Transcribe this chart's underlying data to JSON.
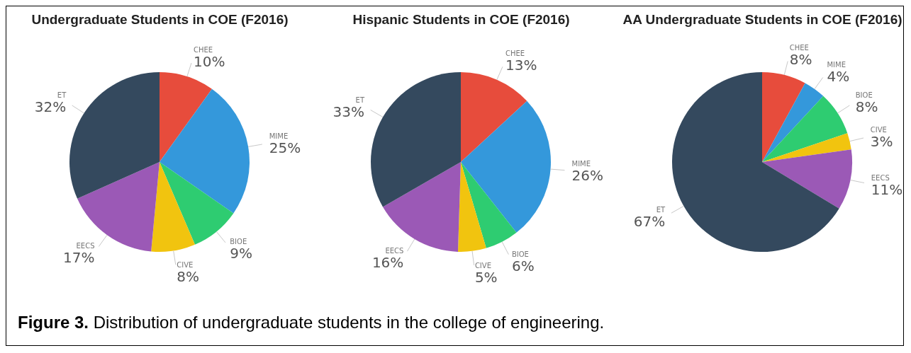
{
  "chart_data": [
    {
      "type": "pie",
      "title": "Undergraduate Students in COE (F2016)",
      "categories": [
        "CHEE",
        "MIME",
        "BIOE",
        "CIVE",
        "EECS",
        "ET"
      ],
      "values": [
        10,
        25,
        9,
        8,
        17,
        32
      ],
      "value_labels": [
        "10%",
        "25%",
        "9%",
        "8%",
        "17%",
        "32%"
      ],
      "colors": [
        "#e74c3c",
        "#3498db",
        "#2ecc71",
        "#f1c40f",
        "#9b59b6",
        "#34495e"
      ],
      "annotations": [
        "Figure 3. Distribution of undergraduate students in the college of engineering."
      ]
    },
    {
      "type": "pie",
      "title": "Hispanic Students in COE (F2016)",
      "categories": [
        "CHEE",
        "MIME",
        "BIOE",
        "CIVE",
        "EECS",
        "ET"
      ],
      "values": [
        13,
        26,
        6,
        5,
        16,
        33
      ],
      "value_labels": [
        "13%",
        "26%",
        "6%",
        "5%",
        "16%",
        "33%"
      ],
      "colors": [
        "#e74c3c",
        "#3498db",
        "#2ecc71",
        "#f1c40f",
        "#9b59b6",
        "#34495e"
      ]
    },
    {
      "type": "pie",
      "title": "AA Undergraduate Students in COE (F2016)",
      "categories": [
        "CHEE",
        "MIME",
        "BIOE",
        "CIVE",
        "EECS",
        "ET"
      ],
      "values": [
        8,
        4,
        8,
        3,
        11,
        67
      ],
      "value_labels": [
        "8%",
        "4%",
        "8%",
        "3%",
        "11%",
        "67%"
      ],
      "colors": [
        "#e74c3c",
        "#3498db",
        "#2ecc71",
        "#f1c40f",
        "#9b59b6",
        "#34495e"
      ]
    }
  ]
}
